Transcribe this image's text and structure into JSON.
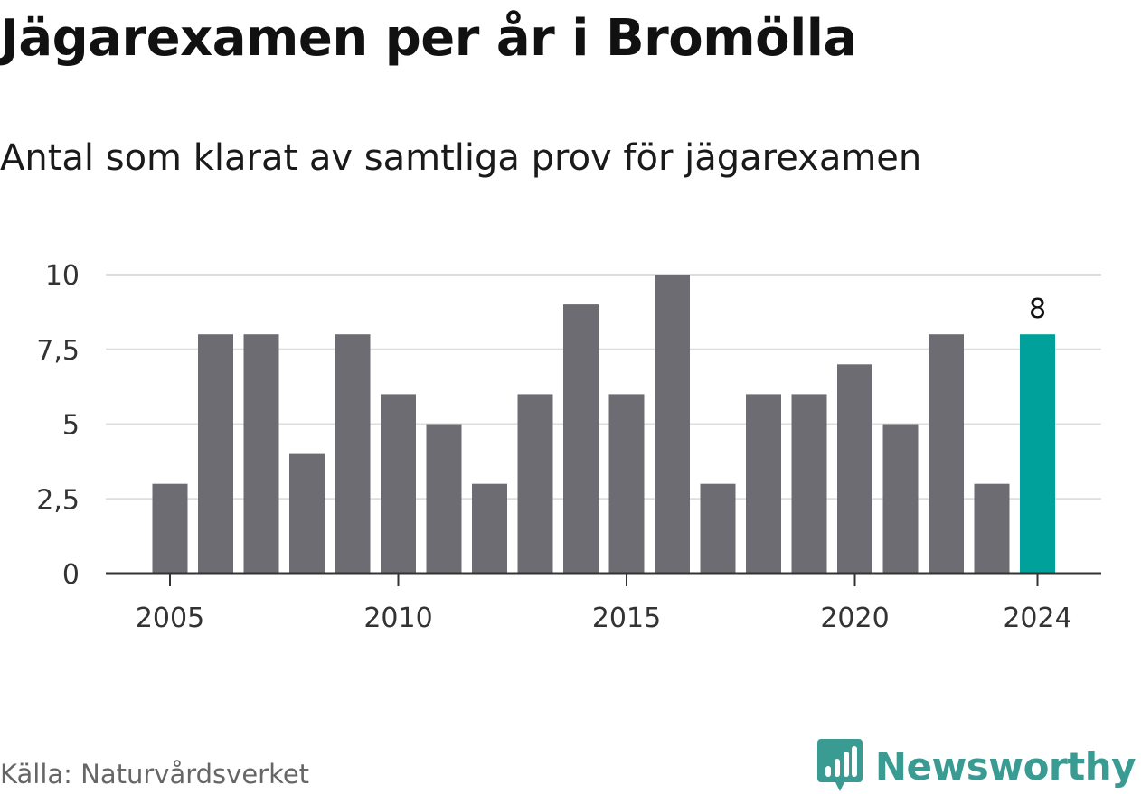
{
  "title": "Jägarexamen per år i Bromölla",
  "subtitle": "Antal som klarat av samtliga prov för jägarexamen",
  "source": "Källa: Naturvårdsverket",
  "brand": {
    "name": "Newsworthy",
    "icon": "newsworthy-logo-icon",
    "color": "#3a9b93"
  },
  "chart_data": {
    "type": "bar",
    "title": "",
    "xlabel": "",
    "ylabel": "",
    "x": [
      2005,
      2006,
      2007,
      2008,
      2009,
      2010,
      2011,
      2012,
      2013,
      2014,
      2015,
      2016,
      2017,
      2018,
      2019,
      2020,
      2021,
      2022,
      2023,
      2024
    ],
    "values": [
      3,
      8,
      8,
      4,
      8,
      6,
      5,
      3,
      6,
      9,
      6,
      10,
      3,
      6,
      6,
      7,
      5,
      8,
      3,
      8
    ],
    "ylim": [
      0,
      10
    ],
    "yticks": [
      0,
      2.5,
      5,
      7.5,
      10
    ],
    "ytick_labels": [
      "0",
      "2,5",
      "5",
      "7,5",
      "10"
    ],
    "xticks": [
      2005,
      2010,
      2015,
      2020,
      2024
    ],
    "xtick_labels": [
      "2005",
      "2010",
      "2015",
      "2020",
      "2024"
    ],
    "highlight": {
      "x": 2024,
      "label": "8"
    },
    "grid": true,
    "colors": {
      "bar": "#6d6c73",
      "highlight": "#00a19a",
      "grid": "#dddddd",
      "axis": "#333333"
    }
  }
}
